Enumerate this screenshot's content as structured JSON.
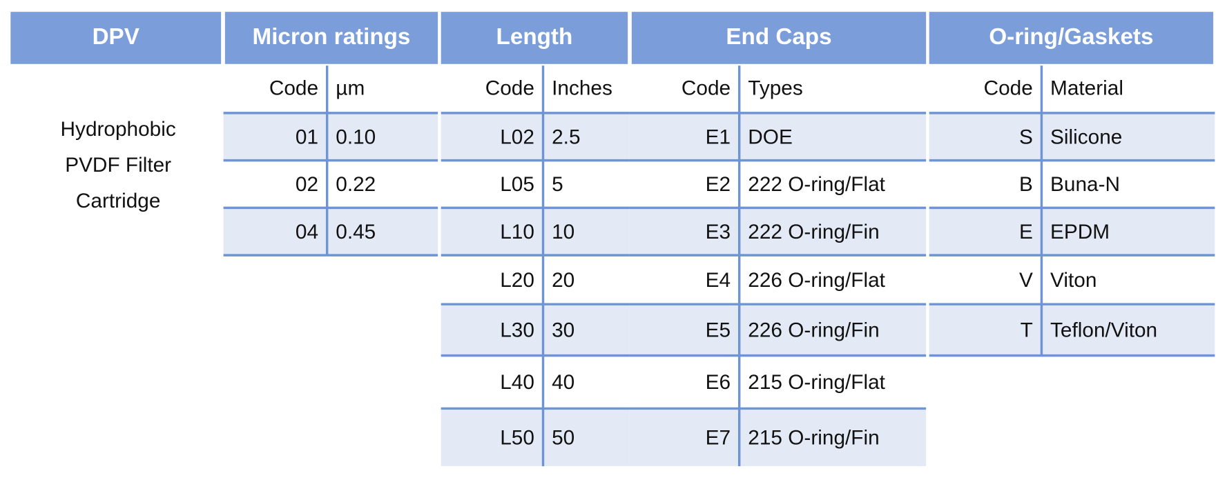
{
  "header": [
    "DPV",
    "Micron ratings",
    "Length",
    "End Caps",
    "O-ring/Gaskets"
  ],
  "description": [
    "Hydrophobic",
    "PVDF Filter",
    "Cartridge"
  ],
  "micron": {
    "columns": [
      "Code",
      "µm"
    ],
    "rows": [
      [
        "01",
        "0.10"
      ],
      [
        "02",
        "0.22"
      ],
      [
        "04",
        "0.45"
      ]
    ]
  },
  "length": {
    "columns": [
      "Code",
      "Inches"
    ],
    "rows": [
      [
        "L02",
        "2.5"
      ],
      [
        "L05",
        "5"
      ],
      [
        "L10",
        "10"
      ],
      [
        "L20",
        "20"
      ],
      [
        "L30",
        "30"
      ],
      [
        "L40",
        "40"
      ],
      [
        "L50",
        "50"
      ]
    ]
  },
  "end_caps": {
    "columns": [
      "Code",
      "Types"
    ],
    "rows": [
      [
        "E1",
        "DOE"
      ],
      [
        "E2",
        "222 O-ring/Flat"
      ],
      [
        "E3",
        "222 O-ring/Fin"
      ],
      [
        "E4",
        "226 O-ring/Flat"
      ],
      [
        "E5",
        "226 O-ring/Fin"
      ],
      [
        "E6",
        "215 O-ring/Flat"
      ],
      [
        "E7",
        "215 O-ring/Fin"
      ]
    ]
  },
  "gaskets": {
    "columns": [
      "Code",
      "Material"
    ],
    "rows": [
      [
        "S",
        "Silicone"
      ],
      [
        "B",
        "Buna-N"
      ],
      [
        "E",
        "EPDM"
      ],
      [
        "V",
        "Viton"
      ],
      [
        "T",
        "Teflon/Viton"
      ]
    ]
  }
}
